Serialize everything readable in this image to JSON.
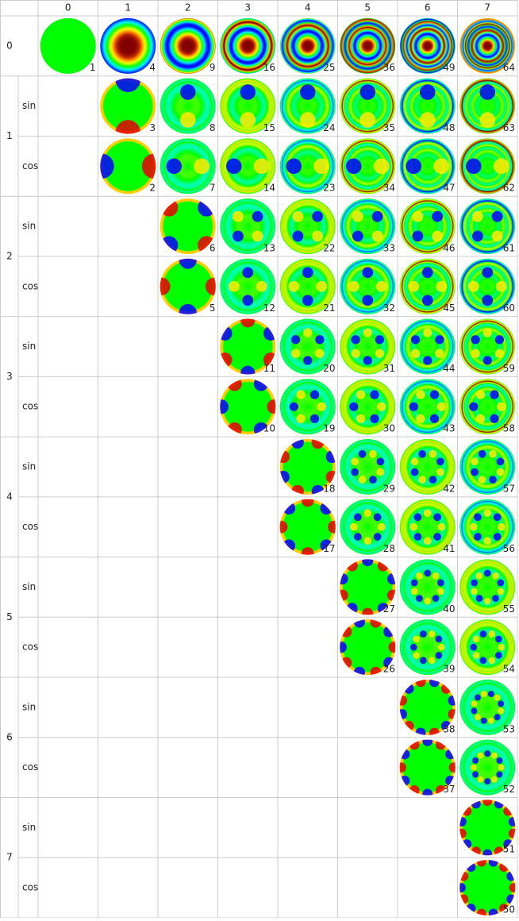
{
  "header": {
    "columns": [
      "0",
      "1",
      "2",
      "3",
      "4",
      "5",
      "6",
      "7"
    ]
  },
  "rows": [
    {
      "label": "0",
      "subrows": [
        {
          "cells": [
            1,
            4,
            9,
            16,
            25,
            36,
            49,
            64
          ]
        }
      ]
    },
    {
      "label": "1",
      "subrows": [
        {
          "kind": "sin",
          "cells": [
            null,
            3,
            8,
            15,
            24,
            35,
            48,
            63
          ]
        },
        {
          "kind": "cos",
          "cells": [
            null,
            2,
            7,
            14,
            23,
            34,
            47,
            62
          ]
        }
      ]
    },
    {
      "label": "2",
      "subrows": [
        {
          "kind": "sin",
          "cells": [
            null,
            null,
            6,
            13,
            22,
            33,
            46,
            61
          ]
        },
        {
          "kind": "cos",
          "cells": [
            null,
            null,
            5,
            12,
            21,
            32,
            45,
            60
          ]
        }
      ]
    },
    {
      "label": "3",
      "subrows": [
        {
          "kind": "sin",
          "cells": [
            null,
            null,
            null,
            11,
            20,
            31,
            44,
            59
          ]
        },
        {
          "kind": "cos",
          "cells": [
            null,
            null,
            null,
            10,
            19,
            30,
            43,
            58
          ]
        }
      ]
    },
    {
      "label": "4",
      "subrows": [
        {
          "kind": "sin",
          "cells": [
            null,
            null,
            null,
            null,
            18,
            29,
            42,
            57
          ]
        },
        {
          "kind": "cos",
          "cells": [
            null,
            null,
            null,
            null,
            17,
            28,
            41,
            56
          ]
        }
      ]
    },
    {
      "label": "5",
      "subrows": [
        {
          "kind": "sin",
          "cells": [
            null,
            null,
            null,
            null,
            null,
            27,
            40,
            55
          ]
        },
        {
          "kind": "cos",
          "cells": [
            null,
            null,
            null,
            null,
            null,
            26,
            39,
            54
          ]
        }
      ]
    },
    {
      "label": "6",
      "subrows": [
        {
          "kind": "sin",
          "cells": [
            null,
            null,
            null,
            null,
            null,
            null,
            38,
            53
          ]
        },
        {
          "kind": "cos",
          "cells": [
            null,
            null,
            null,
            null,
            null,
            null,
            37,
            52
          ]
        }
      ]
    },
    {
      "label": "7",
      "subrows": [
        {
          "kind": "sin",
          "cells": [
            null,
            null,
            null,
            null,
            null,
            null,
            null,
            51
          ]
        },
        {
          "kind": "cos",
          "cells": [
            null,
            null,
            null,
            null,
            null,
            null,
            null,
            50
          ]
        }
      ]
    }
  ]
}
